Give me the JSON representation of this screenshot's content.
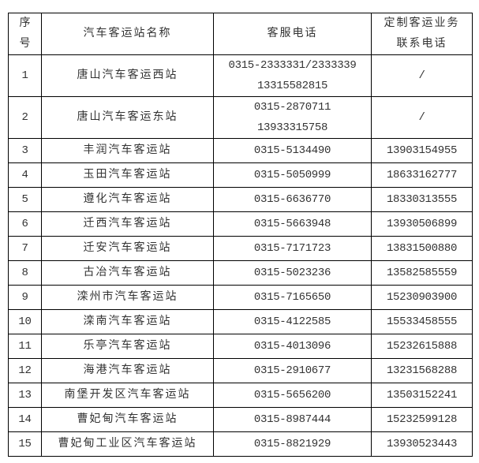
{
  "headers": {
    "index": [
      "序",
      "号"
    ],
    "name": "汽车客运站名称",
    "service_phone": "客服电话",
    "custom_phone": [
      "定制客运业务",
      "联系电话"
    ]
  },
  "rows": [
    {
      "index": "1",
      "name": "唐山汽车客运西站",
      "service_phone": [
        "0315-2333331/2333339",
        "13315582815"
      ],
      "custom_phone": "/"
    },
    {
      "index": "2",
      "name": "唐山汽车客运东站",
      "service_phone": [
        "0315-2870711",
        "13933315758"
      ],
      "custom_phone": "/"
    },
    {
      "index": "3",
      "name": "丰润汽车客运站",
      "service_phone": [
        "0315-5134490"
      ],
      "custom_phone": "13903154955"
    },
    {
      "index": "4",
      "name": "玉田汽车客运站",
      "service_phone": [
        "0315-5050999"
      ],
      "custom_phone": "18633162777"
    },
    {
      "index": "5",
      "name": "遵化汽车客运站",
      "service_phone": [
        "0315-6636770"
      ],
      "custom_phone": "18330313555"
    },
    {
      "index": "6",
      "name": "迁西汽车客运站",
      "service_phone": [
        "0315-5663948"
      ],
      "custom_phone": "13930506899"
    },
    {
      "index": "7",
      "name": "迁安汽车客运站",
      "service_phone": [
        "0315-7171723"
      ],
      "custom_phone": "13831500880"
    },
    {
      "index": "8",
      "name": "古冶汽车客运站",
      "service_phone": [
        "0315-5023236"
      ],
      "custom_phone": "13582585559"
    },
    {
      "index": "9",
      "name": "滦州市汽车客运站",
      "service_phone": [
        "0315-7165650"
      ],
      "custom_phone": "15230903900"
    },
    {
      "index": "10",
      "name": "滦南汽车客运站",
      "service_phone": [
        "0315-4122585"
      ],
      "custom_phone": "15533458555"
    },
    {
      "index": "11",
      "name": "乐亭汽车客运站",
      "service_phone": [
        "0315-4013096"
      ],
      "custom_phone": "15232615888"
    },
    {
      "index": "12",
      "name": "海港汽车客运站",
      "service_phone": [
        "0315-2910677"
      ],
      "custom_phone": "13231568288"
    },
    {
      "index": "13",
      "name": "南堡开发区汽车客运站",
      "service_phone": [
        "0315-5656200"
      ],
      "custom_phone": "13503152241"
    },
    {
      "index": "14",
      "name": "曹妃甸汽车客运站",
      "service_phone": [
        "0315-8987444"
      ],
      "custom_phone": "15232599128"
    },
    {
      "index": "15",
      "name": "曹妃甸工业区汽车客运站",
      "service_phone": [
        "0315-8821929"
      ],
      "custom_phone": "13930523443"
    }
  ]
}
